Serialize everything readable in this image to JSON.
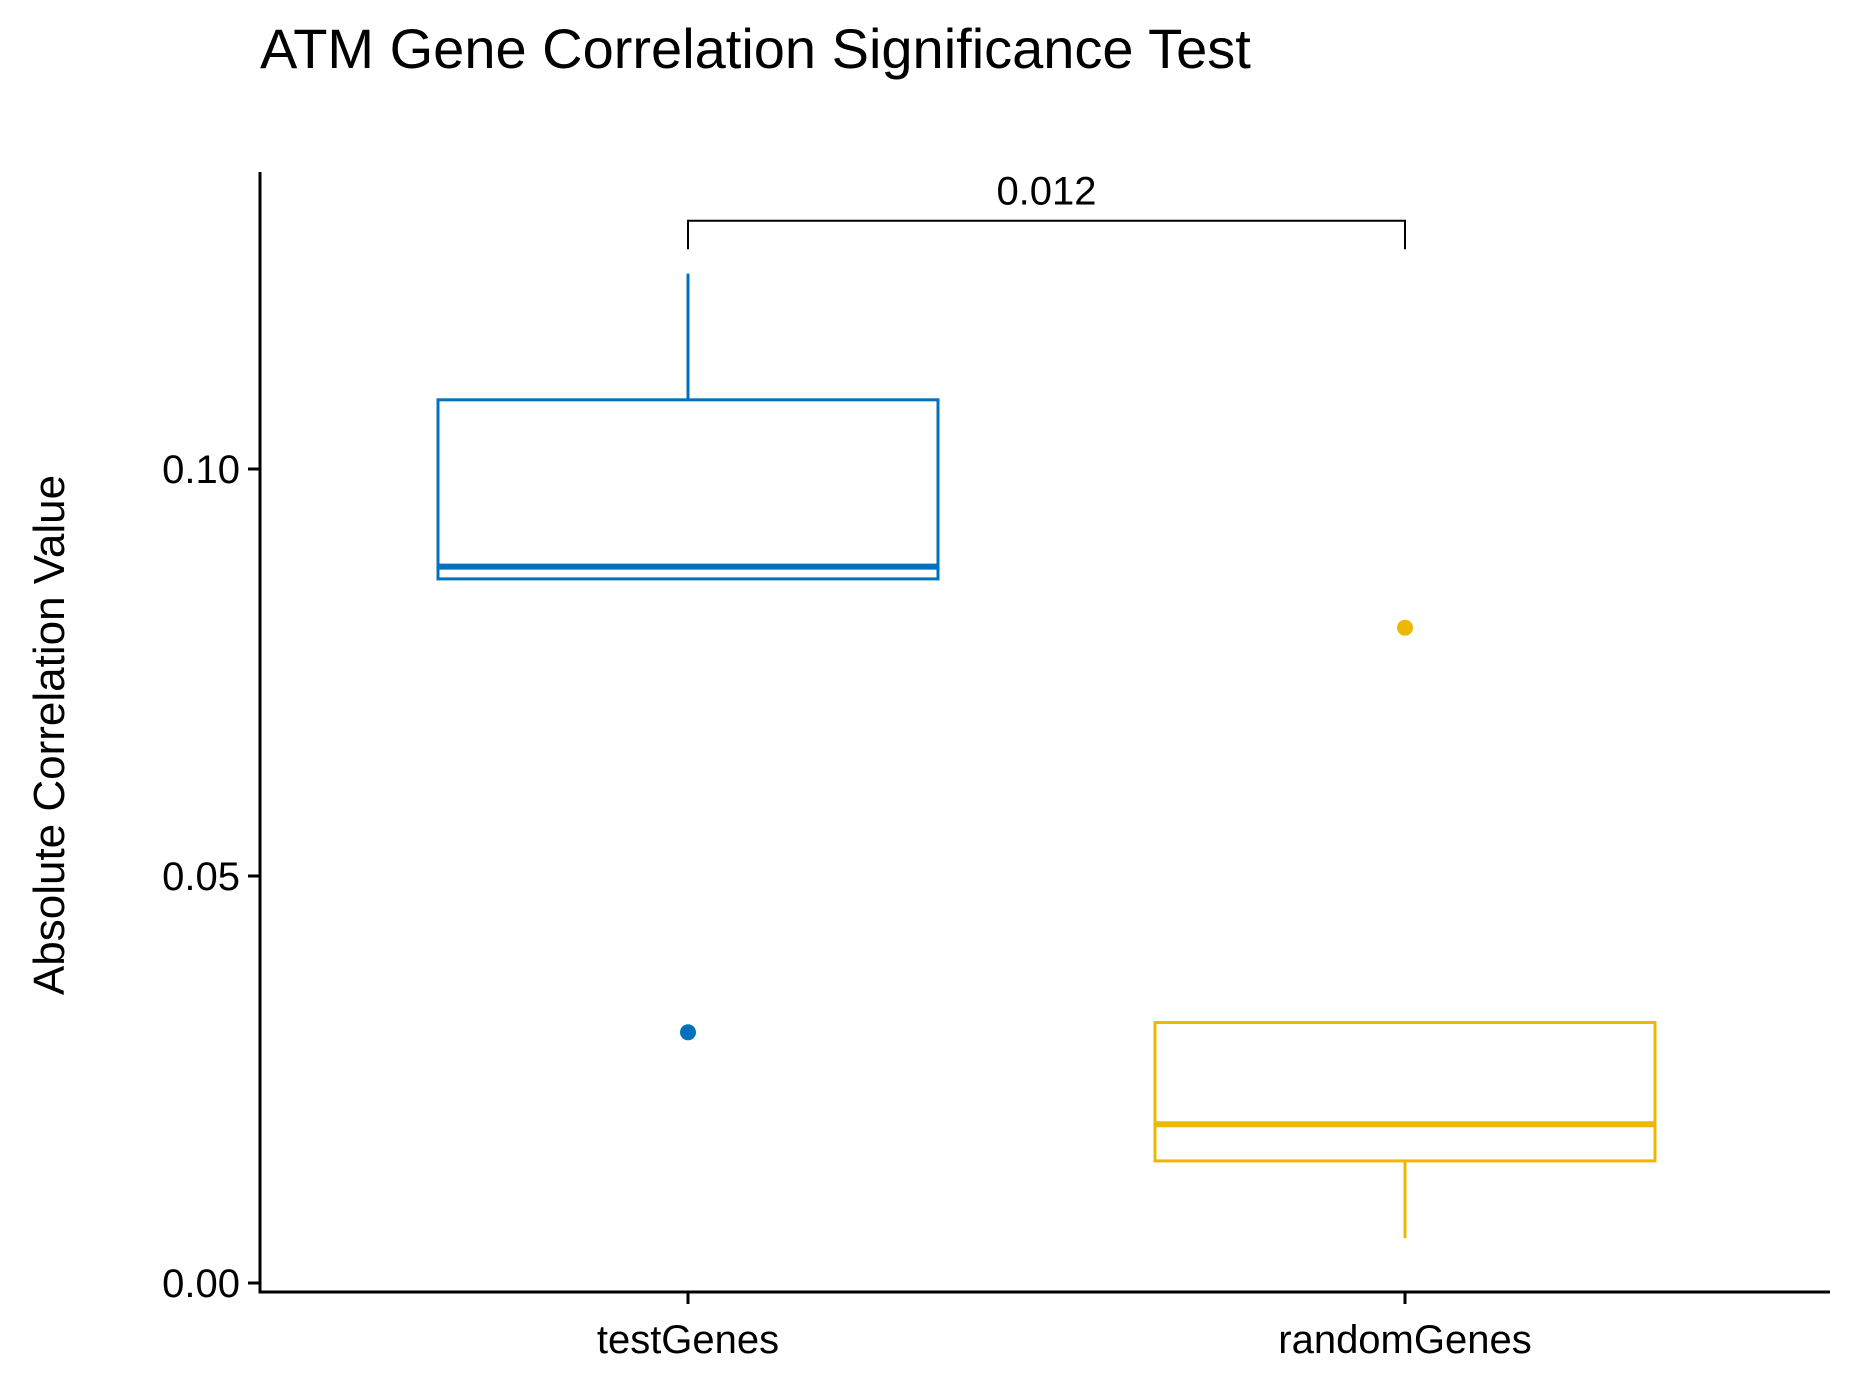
{
  "chart_data": {
    "type": "boxplot",
    "title": "ATM Gene Correlation Significance Test",
    "xlabel": "",
    "ylabel": "Absolute Correlation Value",
    "ylim": [
      0,
      0.131
    ],
    "yticks": [
      "0.00",
      "0.05",
      "0.10"
    ],
    "ytick_values": [
      0,
      0.05,
      0.1
    ],
    "grid": false,
    "legend": "none",
    "categories": [
      "testGenes",
      "randomGenes"
    ],
    "series": [
      {
        "color": "#0072BD",
        "stats": {
          "whisker_low": 0.0865,
          "q1": 0.0865,
          "median": 0.088,
          "q3": 0.1085,
          "whisker_high": 0.124
        },
        "outliers": [
          0.0308
        ]
      },
      {
        "color": "#EDB800",
        "stats": {
          "whisker_low": 0.0055,
          "q1": 0.015,
          "median": 0.0195,
          "q3": 0.032,
          "whisker_high": 0.032
        },
        "outliers": [
          0.0805
        ]
      }
    ],
    "annotations": [
      {
        "label": "0.012",
        "from": "testGenes",
        "to": "randomGenes",
        "y": 0.1305,
        "drop_to": 0.127
      }
    ]
  }
}
